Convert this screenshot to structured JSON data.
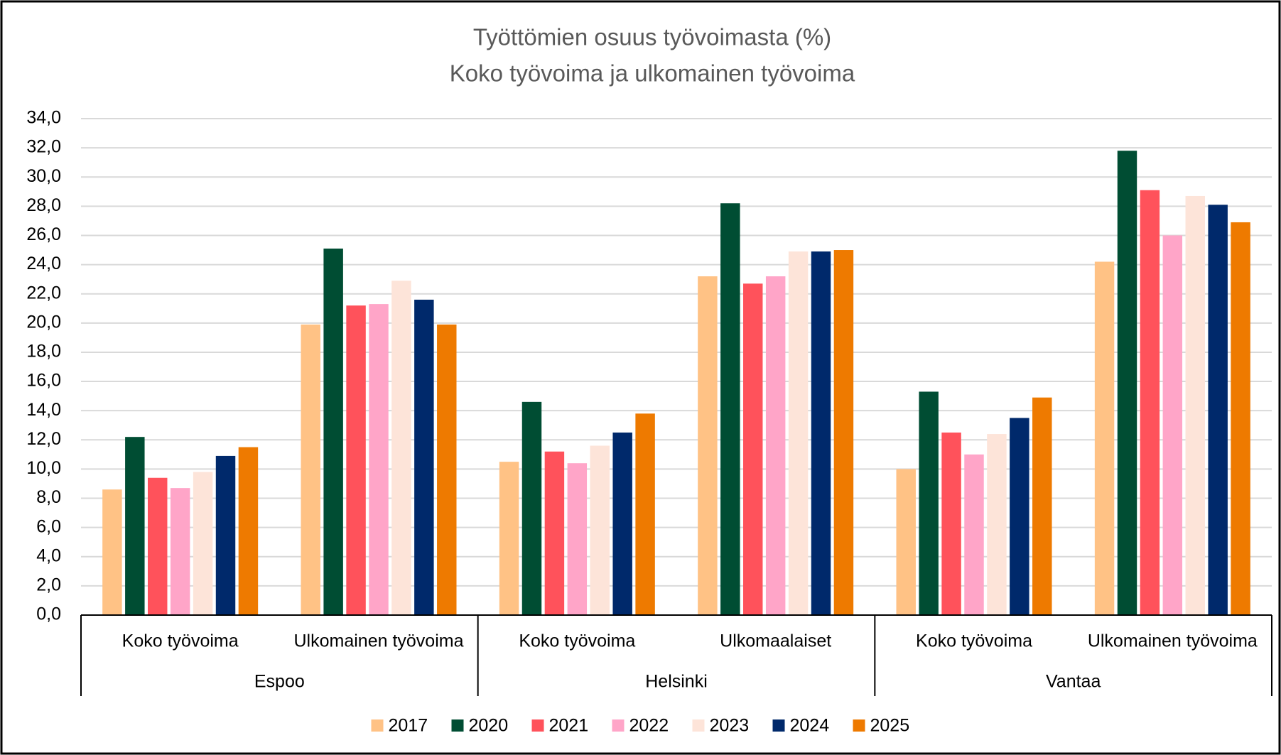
{
  "chart_data": {
    "type": "bar",
    "title": "Työttömien osuus työvoimasta (%)",
    "subtitle": "Koko työvoima ja ulkomainen työvoima",
    "groups": [
      {
        "name": "Espoo",
        "categories": [
          "Koko työvoima",
          "Ulkomainen työvoima"
        ]
      },
      {
        "name": "Helsinki",
        "categories": [
          "Koko työvoima",
          "Ulkomaalaiset"
        ]
      },
      {
        "name": "Vantaa",
        "categories": [
          "Koko työvoima",
          "Ulkomainen työvoima"
        ]
      }
    ],
    "series": [
      {
        "name": "2017",
        "color": "#ffc285",
        "values": [
          8.6,
          19.9,
          10.5,
          23.2,
          10.0,
          24.2
        ]
      },
      {
        "name": "2020",
        "color": "#004d33",
        "values": [
          12.2,
          25.1,
          14.6,
          28.2,
          15.3,
          31.8
        ]
      },
      {
        "name": "2021",
        "color": "#ff525b",
        "values": [
          9.4,
          21.2,
          11.2,
          22.7,
          12.5,
          29.1
        ]
      },
      {
        "name": "2022",
        "color": "#ffa5c8",
        "values": [
          8.7,
          21.3,
          10.4,
          23.2,
          11.0,
          26.0
        ]
      },
      {
        "name": "2023",
        "color": "#fde4d9",
        "values": [
          9.8,
          22.9,
          11.6,
          24.9,
          12.4,
          28.7
        ]
      },
      {
        "name": "2024",
        "color": "#00296b",
        "values": [
          10.9,
          21.6,
          12.5,
          24.9,
          13.5,
          28.1
        ]
      },
      {
        "name": "2025",
        "color": "#ee7a00",
        "values": [
          11.5,
          19.9,
          13.8,
          25.0,
          14.9,
          26.9
        ]
      }
    ],
    "ylim": [
      0,
      34
    ],
    "yticks": [
      {
        "value": 0,
        "label": "0,0"
      },
      {
        "value": 2,
        "label": "2,0"
      },
      {
        "value": 4,
        "label": "4,0"
      },
      {
        "value": 6,
        "label": "6,0"
      },
      {
        "value": 8,
        "label": "8,0"
      },
      {
        "value": 10,
        "label": "10,0"
      },
      {
        "value": 12,
        "label": "12,0"
      },
      {
        "value": 14,
        "label": "14,0"
      },
      {
        "value": 16,
        "label": "16,0"
      },
      {
        "value": 18,
        "label": "18,0"
      },
      {
        "value": 20,
        "label": "20,0"
      },
      {
        "value": 22,
        "label": "22,0"
      },
      {
        "value": 24,
        "label": "24,0"
      },
      {
        "value": 26,
        "label": "26,0"
      },
      {
        "value": 28,
        "label": "28,0"
      },
      {
        "value": 30,
        "label": "30,0"
      },
      {
        "value": 32,
        "label": "32,0"
      },
      {
        "value": 34,
        "label": "34,0"
      }
    ],
    "grid": true,
    "legend": "bottom"
  }
}
